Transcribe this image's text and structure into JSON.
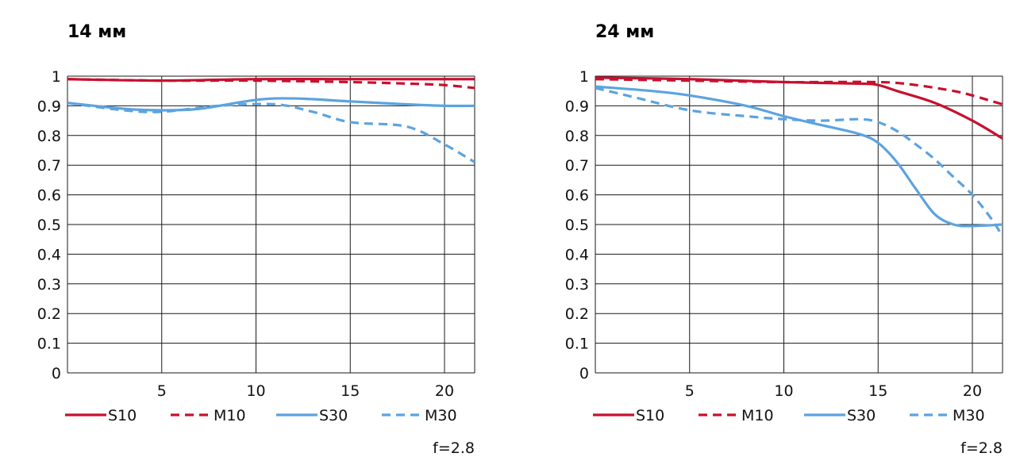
{
  "chart_data": [
    {
      "type": "line",
      "title": "14 мм",
      "note": "f=2.8",
      "xlim": [
        0,
        21.6
      ],
      "ylim": [
        0,
        1
      ],
      "x_ticks": [
        5,
        10,
        15,
        20
      ],
      "y_ticks": [
        0,
        0.1,
        0.2,
        0.3,
        0.4,
        0.5,
        0.6,
        0.7,
        0.8,
        0.9,
        1
      ],
      "grid": true,
      "legend_position": "bottom",
      "series": [
        {
          "name": "S10",
          "color": "#c8102e",
          "style": "solid",
          "x": [
            0,
            5,
            10,
            15,
            20,
            21.6
          ],
          "y": [
            0.99,
            0.985,
            0.99,
            0.99,
            0.99,
            0.99
          ]
        },
        {
          "name": "M10",
          "color": "#c8102e",
          "style": "dashed",
          "x": [
            0,
            5,
            10,
            15,
            18,
            20,
            21.6
          ],
          "y": [
            0.99,
            0.985,
            0.985,
            0.98,
            0.975,
            0.97,
            0.96
          ]
        },
        {
          "name": "S30",
          "color": "#5ba3e0",
          "style": "solid",
          "x": [
            0,
            3,
            5,
            7,
            10,
            12,
            15,
            18,
            20,
            21.6
          ],
          "y": [
            0.91,
            0.89,
            0.885,
            0.89,
            0.92,
            0.925,
            0.915,
            0.905,
            0.9,
            0.9
          ]
        },
        {
          "name": "M30",
          "color": "#5ba3e0",
          "style": "dashed",
          "x": [
            0,
            3,
            5,
            8,
            11,
            13,
            15,
            18,
            20,
            21.6
          ],
          "y": [
            0.91,
            0.885,
            0.88,
            0.9,
            0.905,
            0.88,
            0.845,
            0.83,
            0.77,
            0.71
          ]
        }
      ]
    },
    {
      "type": "line",
      "title": "24 мм",
      "note": "f=2.8",
      "xlim": [
        0,
        21.6
      ],
      "ylim": [
        0,
        1
      ],
      "x_ticks": [
        5,
        10,
        15,
        20
      ],
      "y_ticks": [
        0,
        0.1,
        0.2,
        0.3,
        0.4,
        0.5,
        0.6,
        0.7,
        0.8,
        0.9,
        1
      ],
      "grid": true,
      "legend_position": "bottom",
      "series": [
        {
          "name": "S10",
          "color": "#c8102e",
          "style": "solid",
          "x": [
            0,
            5,
            10,
            14,
            15,
            16,
            18,
            20,
            21.6
          ],
          "y": [
            0.995,
            0.99,
            0.98,
            0.975,
            0.97,
            0.95,
            0.91,
            0.85,
            0.79
          ]
        },
        {
          "name": "M10",
          "color": "#c8102e",
          "style": "dashed",
          "x": [
            0,
            5,
            10,
            15,
            17,
            19,
            20,
            21.6
          ],
          "y": [
            0.99,
            0.985,
            0.98,
            0.98,
            0.97,
            0.95,
            0.935,
            0.905
          ]
        },
        {
          "name": "S30",
          "color": "#5ba3e0",
          "style": "solid",
          "x": [
            0,
            3,
            5,
            8,
            10,
            12,
            14,
            15,
            16,
            17,
            18,
            19,
            20,
            21.6
          ],
          "y": [
            0.965,
            0.95,
            0.935,
            0.9,
            0.865,
            0.835,
            0.805,
            0.775,
            0.71,
            0.62,
            0.535,
            0.5,
            0.495,
            0.5
          ]
        },
        {
          "name": "M30",
          "color": "#5ba3e0",
          "style": "dashed",
          "x": [
            0,
            2,
            5,
            8,
            10,
            12,
            14,
            15,
            16,
            17,
            18,
            19,
            20,
            21,
            21.6
          ],
          "y": [
            0.96,
            0.93,
            0.885,
            0.865,
            0.855,
            0.85,
            0.855,
            0.845,
            0.815,
            0.77,
            0.72,
            0.66,
            0.6,
            0.52,
            0.46
          ]
        }
      ]
    }
  ]
}
